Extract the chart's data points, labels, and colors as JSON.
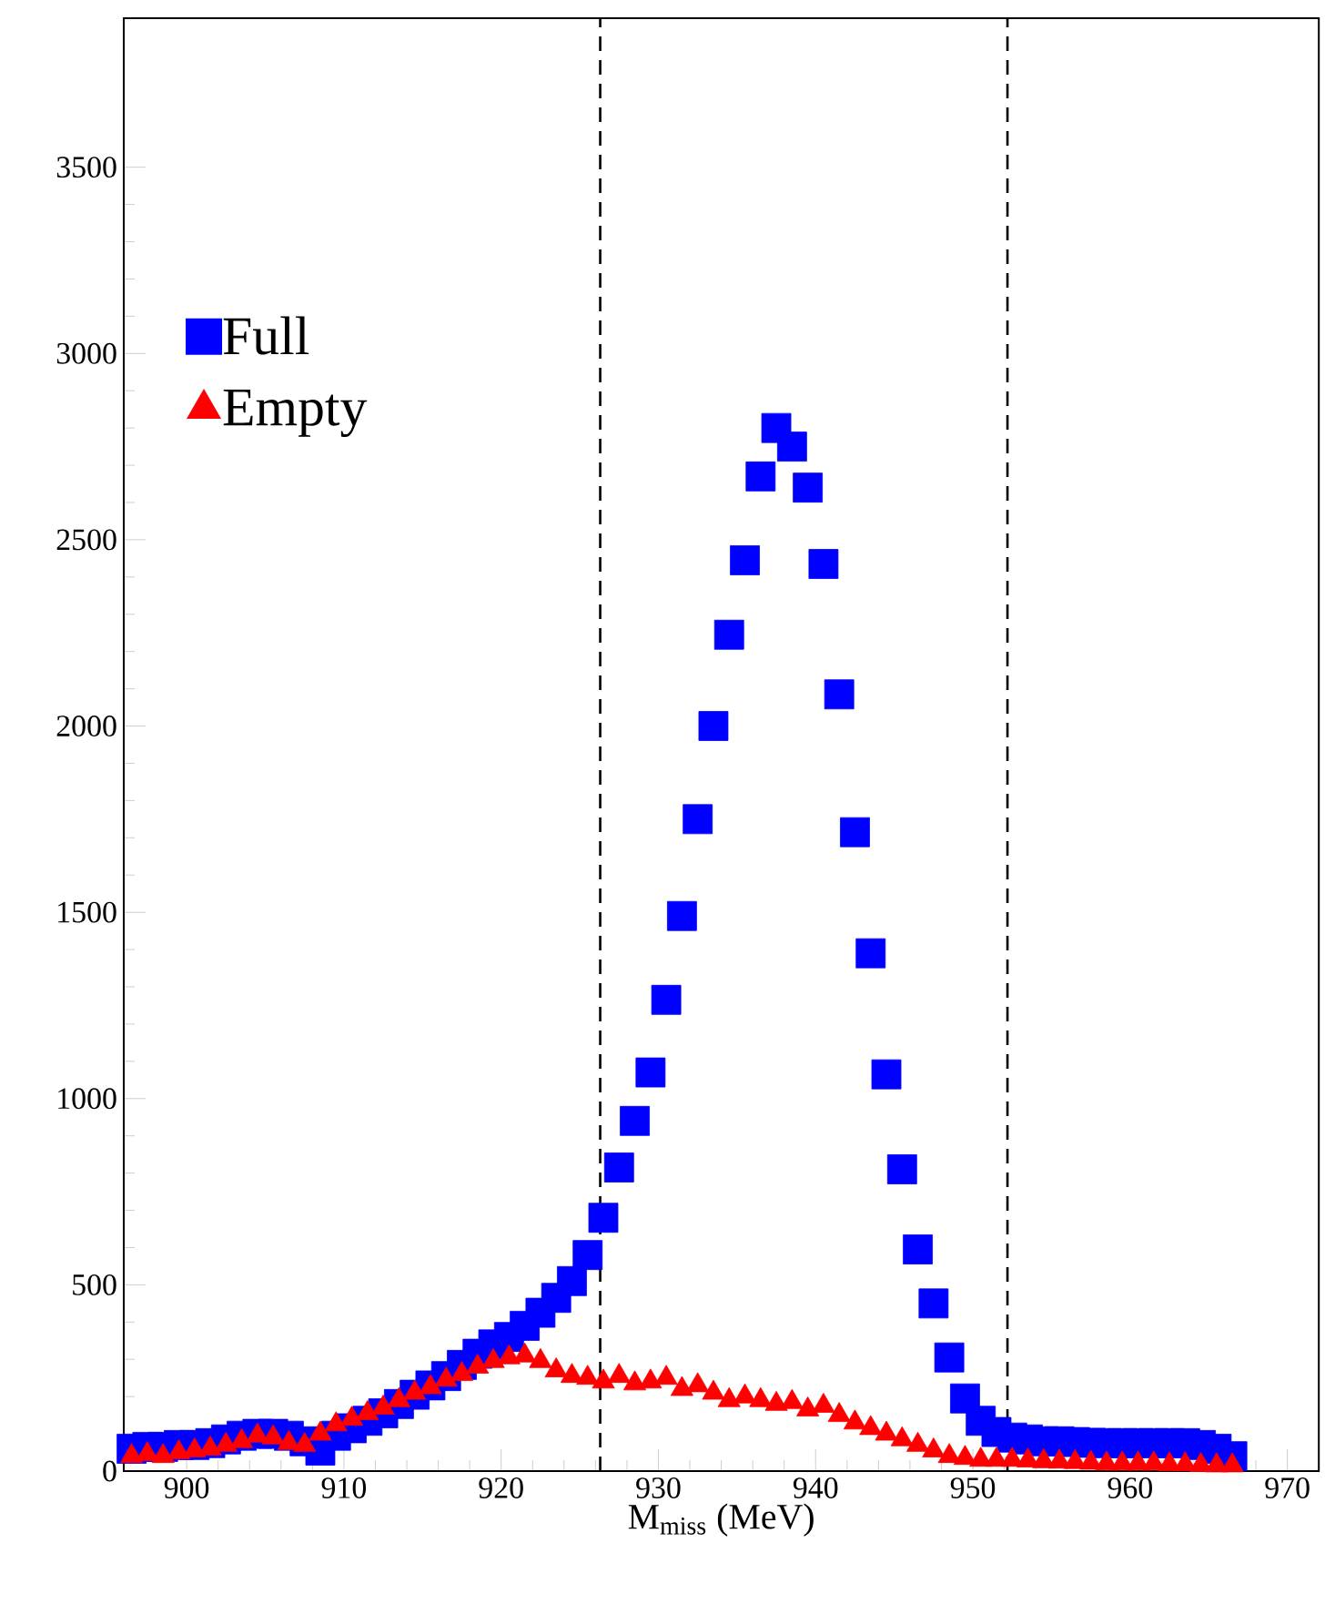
{
  "chart_data": {
    "type": "scatter",
    "xlabel": "M$_{miss}$ (MeV)",
    "xlim": [
      896,
      972
    ],
    "ylim": [
      0,
      3900
    ],
    "xticks": [
      900,
      910,
      920,
      930,
      940,
      950,
      960,
      970
    ],
    "yticks": [
      0,
      500,
      1000,
      1500,
      2000,
      2500,
      3000,
      3500
    ],
    "x": [
      896.5,
      897.5,
      898.5,
      899.5,
      900.5,
      901.5,
      902.5,
      903.5,
      904.5,
      905.5,
      906.5,
      907.5,
      908.5,
      909.5,
      910.5,
      911.5,
      912.5,
      913.5,
      914.5,
      915.5,
      916.5,
      917.5,
      918.5,
      919.5,
      920.5,
      921.5,
      922.5,
      923.5,
      924.5,
      925.5,
      926.5,
      927.5,
      928.5,
      929.5,
      930.5,
      931.5,
      932.5,
      933.5,
      934.5,
      935.5,
      936.5,
      937.5,
      938.5,
      939.5,
      940.5,
      941.5,
      942.5,
      943.5,
      944.5,
      945.5,
      946.5,
      947.5,
      948.5,
      949.5,
      950.5,
      951.5,
      952.5,
      953.5,
      954.5,
      955.5,
      956.5,
      957.5,
      958.5,
      959.5,
      960.5,
      961.5,
      962.5,
      963.5,
      964.5,
      965.5,
      966.5
    ],
    "series": [
      {
        "name": "Full",
        "color": "#0000ff",
        "marker": "square",
        "values": [
          60,
          65,
          65,
          70,
          70,
          75,
          85,
          95,
          100,
          100,
          95,
          80,
          55,
          95,
          115,
          135,
          155,
          180,
          205,
          230,
          255,
          285,
          315,
          340,
          360,
          390,
          425,
          465,
          510,
          580,
          680,
          815,
          940,
          1070,
          1265,
          1490,
          1750,
          2000,
          2245,
          2445,
          2670,
          2800,
          2750,
          2640,
          2435,
          2085,
          1715,
          1390,
          1065,
          810,
          595,
          450,
          305,
          195,
          135,
          105,
          90,
          85,
          80,
          80,
          78,
          76,
          75,
          75,
          75,
          75,
          75,
          75,
          70,
          60,
          40
        ]
      },
      {
        "name": "Empty",
        "color": "#ff0000",
        "marker": "triangle",
        "values": [
          40,
          45,
          40,
          50,
          55,
          60,
          70,
          80,
          95,
          90,
          75,
          70,
          100,
          125,
          140,
          155,
          170,
          190,
          210,
          225,
          245,
          260,
          280,
          295,
          305,
          310,
          295,
          270,
          255,
          250,
          240,
          255,
          235,
          240,
          250,
          220,
          230,
          210,
          190,
          200,
          190,
          180,
          185,
          165,
          175,
          150,
          130,
          115,
          100,
          85,
          70,
          55,
          40,
          35,
          30,
          30,
          30,
          28,
          26,
          25,
          24,
          22,
          20,
          20,
          20,
          20,
          18,
          18,
          16,
          15,
          15
        ]
      }
    ],
    "ref_lines": [
      {
        "axis": "x",
        "value": 926.3,
        "color": "#000000",
        "line_style": "dashed"
      },
      {
        "axis": "x",
        "value": 952.2,
        "color": "#000000",
        "line_style": "dashed"
      }
    ],
    "legend": "top left",
    "grid": false
  }
}
